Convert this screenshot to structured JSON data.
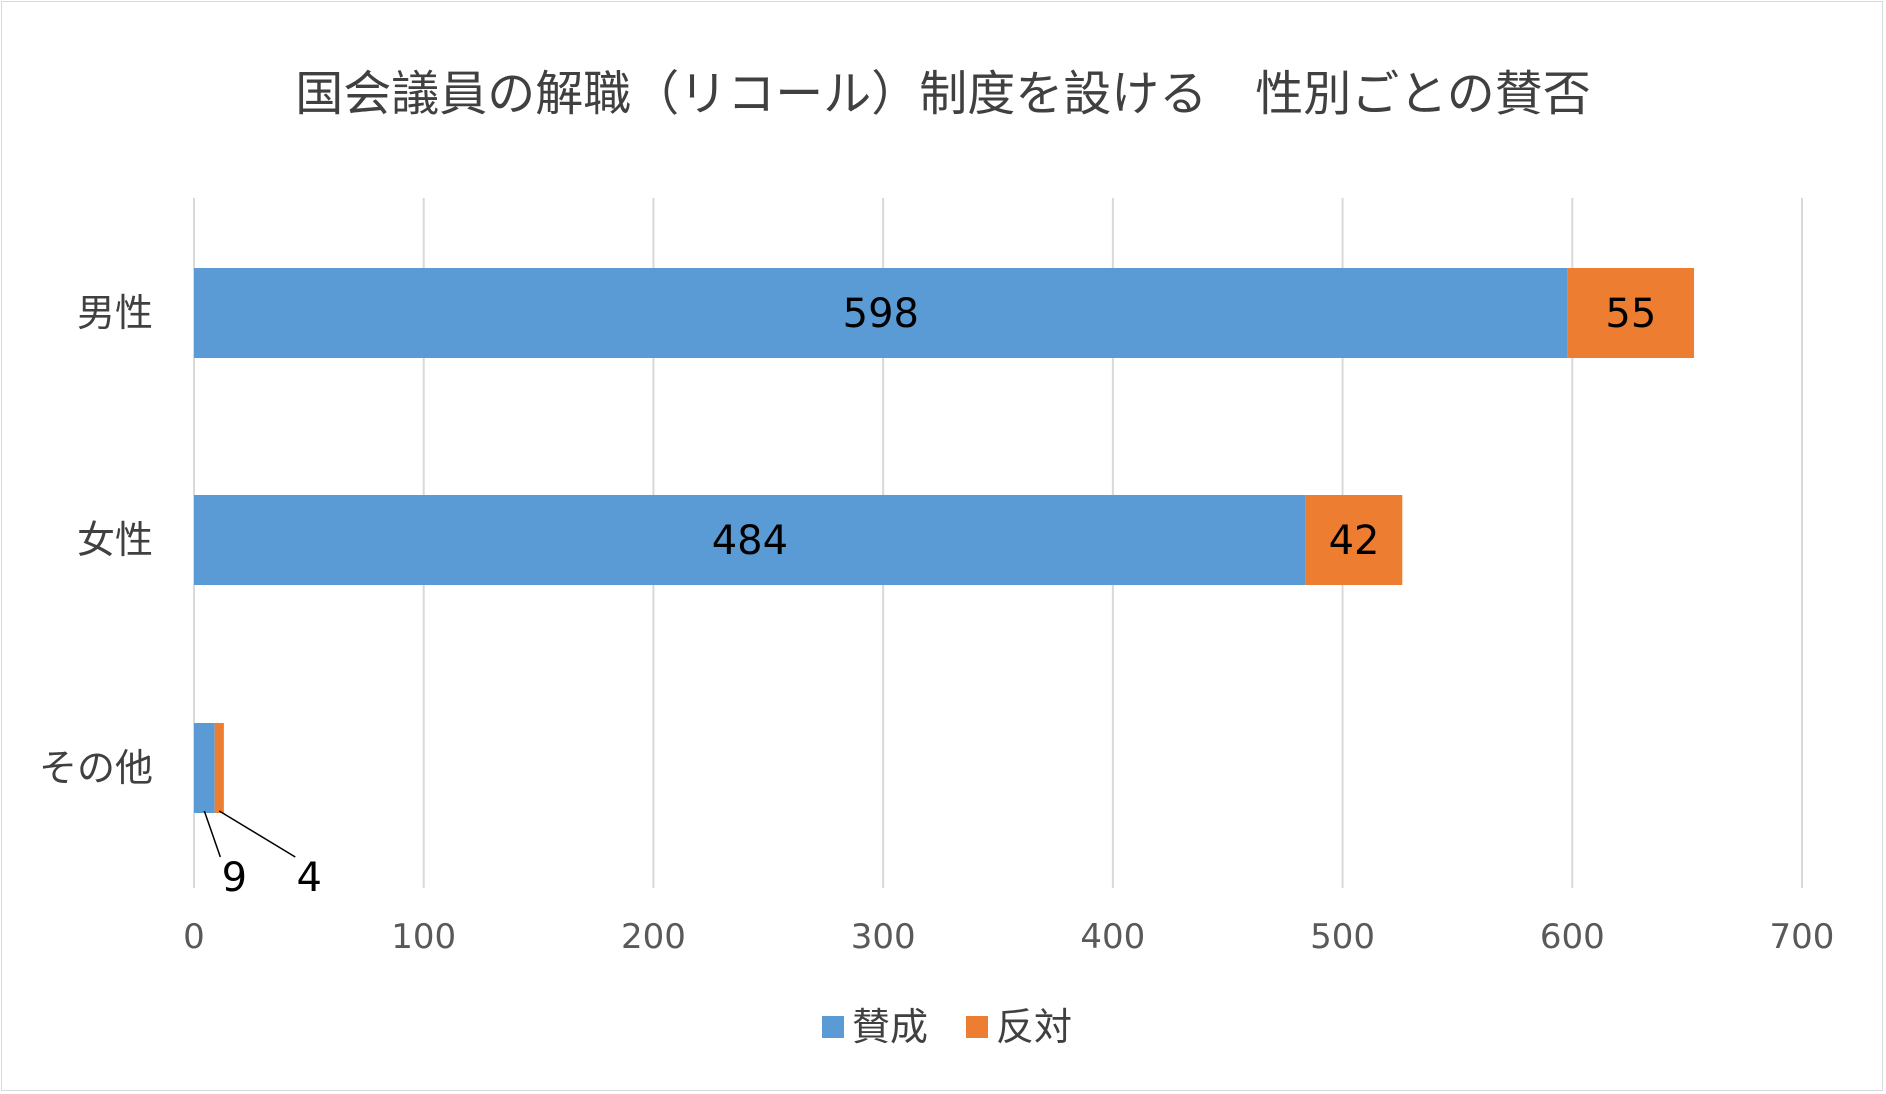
{
  "chart_data": {
    "type": "bar",
    "orientation": "horizontal",
    "stacked": true,
    "title": "国会議員の解職（リコール）制度を設ける　性別ごとの賛否",
    "categories": [
      "男性",
      "女性",
      "その他"
    ],
    "series": [
      {
        "name": "賛成",
        "color": "#5b9bd5",
        "values": [
          598,
          484,
          9
        ]
      },
      {
        "name": "反対",
        "color": "#ed7d31",
        "values": [
          55,
          42,
          4
        ]
      }
    ],
    "xlim": [
      0,
      700
    ],
    "xticks": [
      0,
      100,
      200,
      300,
      400,
      500,
      600,
      700
    ],
    "grid": true,
    "legend": "bottom",
    "xlabel": "",
    "ylabel": ""
  }
}
